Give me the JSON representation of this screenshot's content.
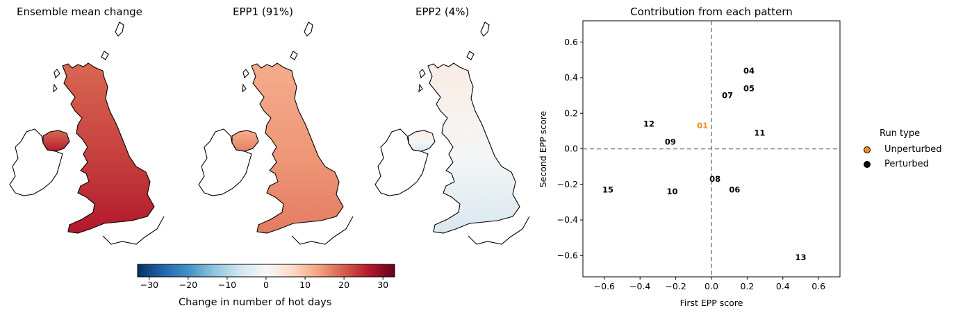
{
  "maps": [
    {
      "title": "Ensemble mean change",
      "intensity": 1.0
    },
    {
      "title": "EPP1 (91%)",
      "intensity": 0.72
    },
    {
      "title": "EPP2 (4%)",
      "intensity": -0.15
    }
  ],
  "colorbar": {
    "label": "Change in number of hot days",
    "ticks": [
      "−30",
      "−20",
      "−10",
      "0",
      "10",
      "20",
      "30"
    ],
    "range": [
      -33,
      33
    ]
  },
  "chart_data": {
    "type": "scatter",
    "title": "Contribution from each pattern",
    "xlabel": "First EPP score",
    "ylabel": "Second EPP score",
    "xlim": [
      -0.72,
      0.72
    ],
    "ylim": [
      -0.72,
      0.72
    ],
    "xticks": [
      "−0.6",
      "−0.4",
      "−0.2",
      "0.0",
      "0.2",
      "0.4",
      "0.6"
    ],
    "yticks": [
      "0.6",
      "0.4",
      "0.2",
      "0.0",
      "−0.2",
      "−0.4",
      "−0.6"
    ],
    "points": [
      {
        "label": "01",
        "x": -0.05,
        "y": 0.13,
        "type": "Unperturbed"
      },
      {
        "label": "04",
        "x": 0.21,
        "y": 0.44,
        "type": "Perturbed"
      },
      {
        "label": "05",
        "x": 0.21,
        "y": 0.34,
        "type": "Perturbed"
      },
      {
        "label": "07",
        "x": 0.09,
        "y": 0.3,
        "type": "Perturbed"
      },
      {
        "label": "11",
        "x": 0.27,
        "y": 0.09,
        "type": "Perturbed"
      },
      {
        "label": "12",
        "x": -0.35,
        "y": 0.14,
        "type": "Perturbed"
      },
      {
        "label": "09",
        "x": -0.23,
        "y": 0.04,
        "type": "Perturbed"
      },
      {
        "label": "08",
        "x": 0.02,
        "y": -0.17,
        "type": "Perturbed"
      },
      {
        "label": "06",
        "x": 0.13,
        "y": -0.23,
        "type": "Perturbed"
      },
      {
        "label": "10",
        "x": -0.22,
        "y": -0.24,
        "type": "Perturbed"
      },
      {
        "label": "15",
        "x": -0.58,
        "y": -0.23,
        "type": "Perturbed"
      },
      {
        "label": "13",
        "x": 0.5,
        "y": -0.61,
        "type": "Perturbed"
      }
    ],
    "legend": {
      "title": "Run type",
      "placement": "right-outside",
      "entries": [
        {
          "name": "Unperturbed",
          "color": "#f28c1e"
        },
        {
          "name": "Perturbed",
          "color": "#000000"
        }
      ]
    },
    "reference_lines": {
      "x": 0.0,
      "y": 0.0,
      "style": "dashed",
      "color": "#808080"
    }
  }
}
